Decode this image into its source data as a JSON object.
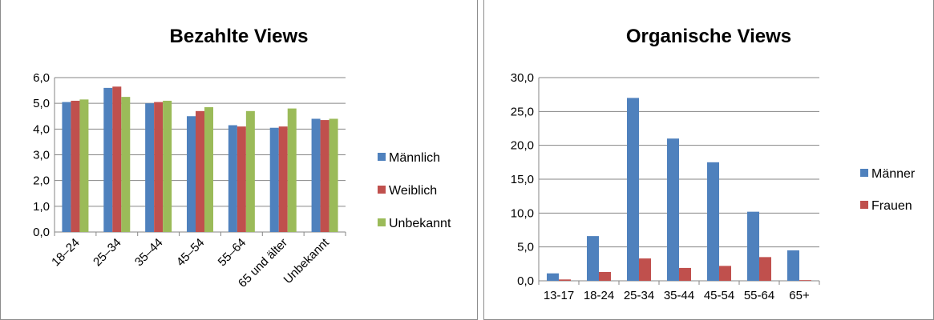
{
  "chart_data": [
    {
      "type": "bar",
      "title": "Bezahlte Views",
      "categories": [
        "18–24",
        "25–34",
        "35–44",
        "45–54",
        "55–64",
        "65 und älter",
        "Unbekannt"
      ],
      "ylim": [
        0,
        6
      ],
      "yticks": [
        "0,0",
        "1,0",
        "2,0",
        "3,0",
        "4,0",
        "5,0",
        "6,0"
      ],
      "grid": true,
      "legend": "right",
      "series": [
        {
          "name": "Männlich",
          "color": "#4f81bd",
          "values": [
            5.05,
            5.6,
            5.0,
            4.5,
            4.15,
            4.05,
            4.4
          ]
        },
        {
          "name": "Weiblich",
          "color": "#c0504d",
          "values": [
            5.1,
            5.65,
            5.05,
            4.7,
            4.1,
            4.1,
            4.35
          ]
        },
        {
          "name": "Unbekannt",
          "color": "#9bbb59",
          "values": [
            5.15,
            5.25,
            5.1,
            4.85,
            4.7,
            4.8,
            4.4
          ]
        }
      ]
    },
    {
      "type": "bar",
      "title": "Organische Views",
      "categories": [
        "13-17",
        "18-24",
        "25-34",
        "35-44",
        "45-54",
        "55-64",
        "65+"
      ],
      "ylim": [
        0,
        30
      ],
      "yticks": [
        "0,0",
        "5,0",
        "10,0",
        "15,0",
        "20,0",
        "25,0",
        "30,0"
      ],
      "grid": true,
      "legend": "right",
      "series": [
        {
          "name": "Männer",
          "color": "#4f81bd",
          "values": [
            1.1,
            6.6,
            27.0,
            21.0,
            17.5,
            10.2,
            4.5
          ]
        },
        {
          "name": "Frauen",
          "color": "#c0504d",
          "values": [
            0.2,
            1.3,
            3.3,
            1.9,
            2.2,
            3.5,
            0.1
          ]
        }
      ]
    }
  ]
}
